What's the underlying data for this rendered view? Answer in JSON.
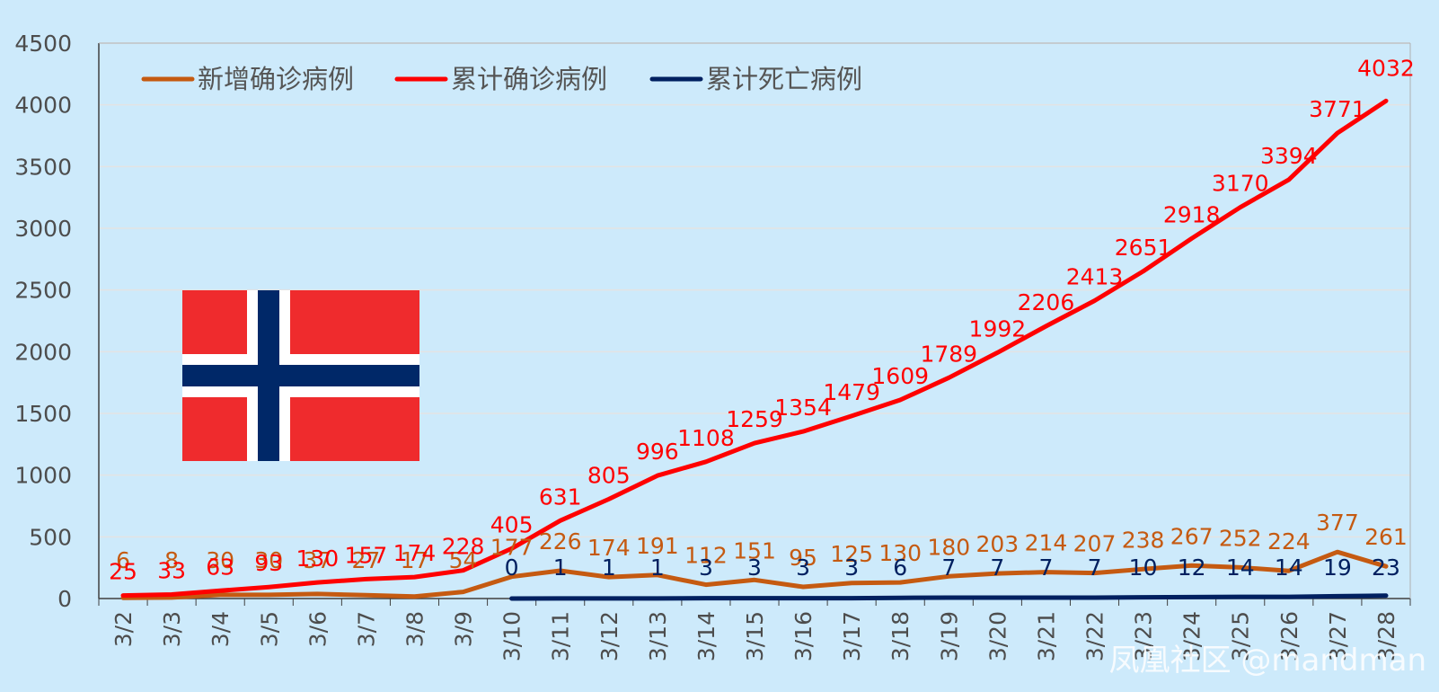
{
  "chart_data": {
    "type": "line",
    "categories": [
      "3/2",
      "3/3",
      "3/4",
      "3/5",
      "3/6",
      "3/7",
      "3/8",
      "3/9",
      "3/10",
      "3/11",
      "3/12",
      "3/13",
      "3/14",
      "3/15",
      "3/16",
      "3/17",
      "3/18",
      "3/19",
      "3/20",
      "3/21",
      "3/22",
      "3/23",
      "3/24",
      "3/25",
      "3/26",
      "3/27",
      "3/28"
    ],
    "ylim": [
      0,
      4500
    ],
    "yticks": [
      0,
      500,
      1000,
      1500,
      2000,
      2500,
      3000,
      3500,
      4000,
      4500
    ],
    "grid": true,
    "legend_position": "top-left",
    "series": [
      {
        "name": "新增确诊病例",
        "color": "#c55a11",
        "values": [
          6,
          8,
          30,
          30,
          37,
          27,
          17,
          54,
          177,
          226,
          174,
          191,
          112,
          151,
          95,
          125,
          130,
          180,
          203,
          214,
          207,
          238,
          267,
          252,
          224,
          377,
          261
        ]
      },
      {
        "name": "累计确诊病例",
        "color": "#ff0000",
        "values": [
          25,
          33,
          63,
          93,
          130,
          157,
          174,
          228,
          405,
          631,
          805,
          996,
          1108,
          1259,
          1354,
          1479,
          1609,
          1789,
          1992,
          2206,
          2413,
          2651,
          2918,
          3170,
          3394,
          3771,
          4032
        ]
      },
      {
        "name": "累计死亡病例",
        "color": "#002060",
        "values": [
          null,
          null,
          null,
          null,
          null,
          null,
          null,
          null,
          0,
          1,
          1,
          1,
          3,
          3,
          3,
          3,
          6,
          7,
          7,
          7,
          7,
          10,
          12,
          14,
          14,
          19,
          23
        ]
      }
    ]
  },
  "flag": {
    "name": "norway-flag-icon",
    "colors": {
      "red": "#ef2b2d",
      "white": "#ffffff",
      "blue": "#002868"
    }
  },
  "watermark": "凤凰社区 @mandman"
}
